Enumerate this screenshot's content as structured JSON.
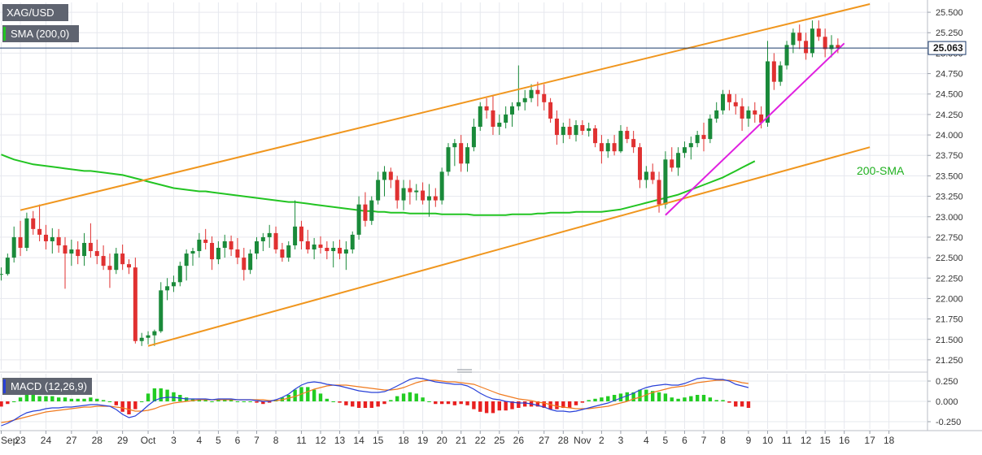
{
  "chart_data": {
    "type": "candlestick",
    "symbol": "XAG/USD",
    "indicator_label": "SMA (200,0)",
    "current_price_label": "25.063",
    "current_price": 25.063,
    "ma_annotation": "200-SMA",
    "colors": {
      "up": "#1a8a3a",
      "down": "#e03131",
      "sma": "#22c422",
      "channel": "#f0961e",
      "support": "#e020e0",
      "macd_line": "#2840d8",
      "signal_line": "#f07a1e",
      "hist_up": "#22cc22",
      "hist_down": "#e82020",
      "price_line": "#1a3a6a",
      "grid": "#e6e8ee",
      "axis_text": "#333333"
    },
    "price_axis": {
      "ylim": [
        21.13,
        25.62
      ],
      "ticks": [
        "25.500",
        "25.250",
        "25.000",
        "24.750",
        "24.500",
        "24.250",
        "24.000",
        "23.750",
        "23.500",
        "23.250",
        "23.000",
        "22.750",
        "22.500",
        "22.250",
        "22.000",
        "21.750",
        "21.500",
        "21.250"
      ]
    },
    "x_axis": {
      "labels": [
        "Sep",
        "23",
        "24",
        "27",
        "28",
        "29",
        "Oct",
        "3",
        "4",
        "5",
        "6",
        "7",
        "8",
        "11",
        "12",
        "13",
        "14",
        "15",
        "18",
        "19",
        "20",
        "21",
        "22",
        "25",
        "26",
        "27",
        "28",
        "Nov",
        "2",
        "3",
        "4",
        "5",
        "6",
        "7",
        "8",
        "9",
        "10",
        "11",
        "12",
        "15",
        "16",
        "17",
        "18"
      ]
    },
    "macd": {
      "label": "MACD (12,26,9)",
      "ylim": [
        -0.34,
        0.34
      ],
      "ticks": [
        "0.250",
        "0.000",
        "-0.250"
      ],
      "macd_line": [
        -0.3,
        -0.27,
        -0.23,
        -0.18,
        -0.14,
        -0.12,
        -0.11,
        -0.09,
        -0.08,
        -0.08,
        -0.07,
        -0.07,
        -0.06,
        -0.05,
        -0.04,
        -0.04,
        -0.05,
        -0.06,
        -0.1,
        -0.16,
        -0.2,
        -0.18,
        -0.12,
        -0.05,
        0.01,
        0.04,
        0.05,
        0.05,
        0.04,
        0.03,
        0.03,
        0.03,
        0.03,
        0.02,
        0.03,
        0.03,
        0.03,
        0.02,
        0.02,
        0.02,
        0.01,
        0.0,
        0.0,
        0.02,
        0.05,
        0.09,
        0.15,
        0.2,
        0.23,
        0.24,
        0.23,
        0.21,
        0.2,
        0.19,
        0.17,
        0.15,
        0.13,
        0.12,
        0.11,
        0.11,
        0.12,
        0.15,
        0.19,
        0.23,
        0.27,
        0.29,
        0.28,
        0.26,
        0.24,
        0.23,
        0.22,
        0.21,
        0.21,
        0.19,
        0.15,
        0.1,
        0.06,
        0.03,
        0.02,
        0.0,
        -0.01,
        -0.02,
        -0.02,
        -0.03,
        -0.05,
        -0.07,
        -0.1,
        -0.12,
        -0.12,
        -0.13,
        -0.12,
        -0.1,
        -0.08,
        -0.06,
        -0.04,
        -0.02,
        0.01,
        0.04,
        0.07,
        0.1,
        0.14,
        0.17,
        0.19,
        0.2,
        0.21,
        0.2,
        0.2,
        0.22,
        0.25,
        0.28,
        0.29,
        0.28,
        0.27,
        0.27,
        0.25,
        0.21,
        0.19,
        0.17
      ],
      "signal_line": [
        -0.26,
        -0.25,
        -0.23,
        -0.21,
        -0.19,
        -0.17,
        -0.15,
        -0.13,
        -0.12,
        -0.11,
        -0.1,
        -0.09,
        -0.08,
        -0.07,
        -0.07,
        -0.06,
        -0.06,
        -0.06,
        -0.07,
        -0.08,
        -0.1,
        -0.12,
        -0.12,
        -0.11,
        -0.09,
        -0.06,
        -0.04,
        -0.02,
        -0.01,
        0.0,
        0.01,
        0.02,
        0.02,
        0.02,
        0.02,
        0.02,
        0.02,
        0.02,
        0.02,
        0.02,
        0.02,
        0.02,
        0.01,
        0.01,
        0.02,
        0.04,
        0.06,
        0.09,
        0.12,
        0.15,
        0.17,
        0.19,
        0.2,
        0.2,
        0.2,
        0.19,
        0.18,
        0.17,
        0.16,
        0.15,
        0.14,
        0.14,
        0.15,
        0.17,
        0.2,
        0.23,
        0.25,
        0.26,
        0.26,
        0.25,
        0.24,
        0.24,
        0.23,
        0.22,
        0.21,
        0.18,
        0.15,
        0.12,
        0.09,
        0.07,
        0.05,
        0.03,
        0.02,
        0.01,
        -0.01,
        -0.02,
        -0.04,
        -0.06,
        -0.07,
        -0.08,
        -0.09,
        -0.09,
        -0.09,
        -0.08,
        -0.07,
        -0.06,
        -0.04,
        -0.02,
        0.0,
        0.03,
        0.05,
        0.08,
        0.11,
        0.13,
        0.15,
        0.17,
        0.18,
        0.19,
        0.21,
        0.23,
        0.24,
        0.25,
        0.26,
        0.26,
        0.26,
        0.25,
        0.23,
        0.22
      ]
    },
    "candles": [
      {
        "o": 22.3,
        "h": 22.38,
        "l": 22.22,
        "c": 22.3
      },
      {
        "o": 22.3,
        "h": 22.55,
        "l": 22.28,
        "c": 22.5
      },
      {
        "o": 22.5,
        "h": 22.88,
        "l": 22.44,
        "c": 22.75
      },
      {
        "o": 22.75,
        "h": 22.95,
        "l": 22.52,
        "c": 22.62
      },
      {
        "o": 22.62,
        "h": 23.05,
        "l": 22.58,
        "c": 22.98
      },
      {
        "o": 22.98,
        "h": 23.07,
        "l": 22.78,
        "c": 22.85
      },
      {
        "o": 22.85,
        "h": 23.15,
        "l": 22.7,
        "c": 22.78
      },
      {
        "o": 22.78,
        "h": 22.9,
        "l": 22.6,
        "c": 22.7
      },
      {
        "o": 22.7,
        "h": 22.86,
        "l": 22.55,
        "c": 22.75
      },
      {
        "o": 22.75,
        "h": 22.85,
        "l": 22.56,
        "c": 22.65
      },
      {
        "o": 22.65,
        "h": 22.75,
        "l": 22.12,
        "c": 22.55
      },
      {
        "o": 22.55,
        "h": 22.72,
        "l": 22.4,
        "c": 22.6
      },
      {
        "o": 22.6,
        "h": 22.7,
        "l": 22.42,
        "c": 22.52
      },
      {
        "o": 22.52,
        "h": 22.8,
        "l": 22.4,
        "c": 22.68
      },
      {
        "o": 22.68,
        "h": 22.92,
        "l": 22.5,
        "c": 22.58
      },
      {
        "o": 22.58,
        "h": 22.72,
        "l": 22.42,
        "c": 22.52
      },
      {
        "o": 22.52,
        "h": 22.65,
        "l": 22.35,
        "c": 22.4
      },
      {
        "o": 22.4,
        "h": 22.55,
        "l": 22.13,
        "c": 22.35
      },
      {
        "o": 22.35,
        "h": 22.62,
        "l": 22.3,
        "c": 22.55
      },
      {
        "o": 22.55,
        "h": 22.66,
        "l": 22.35,
        "c": 22.42
      },
      {
        "o": 22.42,
        "h": 22.48,
        "l": 22.3,
        "c": 22.38
      },
      {
        "o": 22.38,
        "h": 22.5,
        "l": 21.45,
        "c": 21.48
      },
      {
        "o": 21.48,
        "h": 21.58,
        "l": 21.42,
        "c": 21.52
      },
      {
        "o": 21.52,
        "h": 21.6,
        "l": 21.44,
        "c": 21.55
      },
      {
        "o": 21.55,
        "h": 21.62,
        "l": 21.42,
        "c": 21.6
      },
      {
        "o": 21.6,
        "h": 22.2,
        "l": 21.58,
        "c": 22.1
      },
      {
        "o": 22.1,
        "h": 22.25,
        "l": 21.98,
        "c": 22.15
      },
      {
        "o": 22.15,
        "h": 22.28,
        "l": 22.08,
        "c": 22.2
      },
      {
        "o": 22.2,
        "h": 22.45,
        "l": 22.15,
        "c": 22.4
      },
      {
        "o": 22.4,
        "h": 22.6,
        "l": 22.22,
        "c": 22.55
      },
      {
        "o": 22.55,
        "h": 22.62,
        "l": 22.4,
        "c": 22.58
      },
      {
        "o": 22.58,
        "h": 22.8,
        "l": 22.5,
        "c": 22.72
      },
      {
        "o": 22.72,
        "h": 22.85,
        "l": 22.6,
        "c": 22.68
      },
      {
        "o": 22.68,
        "h": 22.76,
        "l": 22.35,
        "c": 22.48
      },
      {
        "o": 22.48,
        "h": 22.7,
        "l": 22.42,
        "c": 22.62
      },
      {
        "o": 22.62,
        "h": 22.78,
        "l": 22.5,
        "c": 22.7
      },
      {
        "o": 22.7,
        "h": 22.77,
        "l": 22.52,
        "c": 22.6
      },
      {
        "o": 22.6,
        "h": 22.74,
        "l": 22.42,
        "c": 22.5
      },
      {
        "o": 22.5,
        "h": 22.62,
        "l": 22.22,
        "c": 22.35
      },
      {
        "o": 22.35,
        "h": 22.6,
        "l": 22.3,
        "c": 22.55
      },
      {
        "o": 22.55,
        "h": 22.75,
        "l": 22.48,
        "c": 22.7
      },
      {
        "o": 22.7,
        "h": 22.8,
        "l": 22.58,
        "c": 22.75
      },
      {
        "o": 22.75,
        "h": 22.9,
        "l": 22.62,
        "c": 22.8
      },
      {
        "o": 22.8,
        "h": 22.88,
        "l": 22.55,
        "c": 22.6
      },
      {
        "o": 22.6,
        "h": 22.68,
        "l": 22.45,
        "c": 22.5
      },
      {
        "o": 22.5,
        "h": 22.7,
        "l": 22.45,
        "c": 22.65
      },
      {
        "o": 22.65,
        "h": 23.2,
        "l": 22.6,
        "c": 22.88
      },
      {
        "o": 22.88,
        "h": 22.95,
        "l": 22.6,
        "c": 22.7
      },
      {
        "o": 22.7,
        "h": 22.84,
        "l": 22.55,
        "c": 22.6
      },
      {
        "o": 22.6,
        "h": 22.74,
        "l": 22.48,
        "c": 22.66
      },
      {
        "o": 22.66,
        "h": 22.76,
        "l": 22.55,
        "c": 22.62
      },
      {
        "o": 22.62,
        "h": 22.7,
        "l": 22.48,
        "c": 22.58
      },
      {
        "o": 22.58,
        "h": 22.7,
        "l": 22.38,
        "c": 22.62
      },
      {
        "o": 22.62,
        "h": 22.72,
        "l": 22.48,
        "c": 22.55
      },
      {
        "o": 22.55,
        "h": 22.7,
        "l": 22.35,
        "c": 22.6
      },
      {
        "o": 22.6,
        "h": 22.82,
        "l": 22.55,
        "c": 22.78
      },
      {
        "o": 22.78,
        "h": 23.25,
        "l": 22.72,
        "c": 23.15
      },
      {
        "o": 23.15,
        "h": 23.3,
        "l": 22.88,
        "c": 22.95
      },
      {
        "o": 22.95,
        "h": 23.25,
        "l": 22.9,
        "c": 23.2
      },
      {
        "o": 23.2,
        "h": 23.55,
        "l": 23.15,
        "c": 23.45
      },
      {
        "o": 23.45,
        "h": 23.62,
        "l": 23.25,
        "c": 23.55
      },
      {
        "o": 23.55,
        "h": 23.6,
        "l": 23.35,
        "c": 23.45
      },
      {
        "o": 23.45,
        "h": 23.5,
        "l": 23.1,
        "c": 23.2
      },
      {
        "o": 23.2,
        "h": 23.45,
        "l": 23.08,
        "c": 23.35
      },
      {
        "o": 23.35,
        "h": 23.45,
        "l": 23.15,
        "c": 23.3
      },
      {
        "o": 23.3,
        "h": 23.4,
        "l": 23.2,
        "c": 23.32
      },
      {
        "o": 23.32,
        "h": 23.42,
        "l": 23.15,
        "c": 23.2
      },
      {
        "o": 23.2,
        "h": 23.4,
        "l": 23.0,
        "c": 23.25
      },
      {
        "o": 23.25,
        "h": 23.35,
        "l": 23.12,
        "c": 23.2
      },
      {
        "o": 23.2,
        "h": 23.6,
        "l": 23.15,
        "c": 23.55
      },
      {
        "o": 23.55,
        "h": 23.9,
        "l": 23.5,
        "c": 23.85
      },
      {
        "o": 23.85,
        "h": 23.95,
        "l": 23.62,
        "c": 23.9
      },
      {
        "o": 23.9,
        "h": 24.0,
        "l": 23.55,
        "c": 23.65
      },
      {
        "o": 23.65,
        "h": 23.9,
        "l": 23.55,
        "c": 23.85
      },
      {
        "o": 23.85,
        "h": 24.2,
        "l": 23.8,
        "c": 24.1
      },
      {
        "o": 24.1,
        "h": 24.4,
        "l": 24.05,
        "c": 24.35
      },
      {
        "o": 24.35,
        "h": 24.45,
        "l": 24.2,
        "c": 24.3
      },
      {
        "o": 24.3,
        "h": 24.48,
        "l": 24.0,
        "c": 24.1
      },
      {
        "o": 24.1,
        "h": 24.25,
        "l": 24.0,
        "c": 24.15
      },
      {
        "o": 24.15,
        "h": 24.35,
        "l": 24.08,
        "c": 24.25
      },
      {
        "o": 24.25,
        "h": 24.4,
        "l": 24.1,
        "c": 24.35
      },
      {
        "o": 24.35,
        "h": 24.85,
        "l": 24.3,
        "c": 24.4
      },
      {
        "o": 24.4,
        "h": 24.55,
        "l": 24.3,
        "c": 24.45
      },
      {
        "o": 24.45,
        "h": 24.62,
        "l": 24.4,
        "c": 24.55
      },
      {
        "o": 24.55,
        "h": 24.65,
        "l": 24.35,
        "c": 24.5
      },
      {
        "o": 24.5,
        "h": 24.62,
        "l": 24.3,
        "c": 24.4
      },
      {
        "o": 24.4,
        "h": 24.45,
        "l": 24.15,
        "c": 24.2
      },
      {
        "o": 24.2,
        "h": 24.3,
        "l": 23.88,
        "c": 24.0
      },
      {
        "o": 24.0,
        "h": 24.15,
        "l": 23.9,
        "c": 24.1
      },
      {
        "o": 24.1,
        "h": 24.2,
        "l": 23.95,
        "c": 24.0
      },
      {
        "o": 24.0,
        "h": 24.18,
        "l": 23.92,
        "c": 24.12
      },
      {
        "o": 24.12,
        "h": 24.18,
        "l": 24.0,
        "c": 24.05
      },
      {
        "o": 24.05,
        "h": 24.15,
        "l": 23.98,
        "c": 24.08
      },
      {
        "o": 24.08,
        "h": 24.12,
        "l": 23.85,
        "c": 23.9
      },
      {
        "o": 23.9,
        "h": 24.0,
        "l": 23.65,
        "c": 23.8
      },
      {
        "o": 23.8,
        "h": 23.95,
        "l": 23.72,
        "c": 23.9
      },
      {
        "o": 23.9,
        "h": 24.0,
        "l": 23.75,
        "c": 23.8
      },
      {
        "o": 23.8,
        "h": 24.12,
        "l": 23.78,
        "c": 24.05
      },
      {
        "o": 24.05,
        "h": 24.1,
        "l": 23.9,
        "c": 23.95
      },
      {
        "o": 23.95,
        "h": 24.05,
        "l": 23.78,
        "c": 23.85
      },
      {
        "o": 23.85,
        "h": 23.9,
        "l": 23.35,
        "c": 23.45
      },
      {
        "o": 23.45,
        "h": 23.62,
        "l": 23.35,
        "c": 23.55
      },
      {
        "o": 23.55,
        "h": 23.65,
        "l": 23.4,
        "c": 23.45
      },
      {
        "o": 23.45,
        "h": 23.55,
        "l": 23.05,
        "c": 23.15
      },
      {
        "o": 23.15,
        "h": 23.8,
        "l": 23.1,
        "c": 23.7
      },
      {
        "o": 23.7,
        "h": 23.85,
        "l": 23.55,
        "c": 23.6
      },
      {
        "o": 23.6,
        "h": 23.85,
        "l": 23.5,
        "c": 23.78
      },
      {
        "o": 23.78,
        "h": 23.92,
        "l": 23.72,
        "c": 23.85
      },
      {
        "o": 23.85,
        "h": 23.98,
        "l": 23.7,
        "c": 23.9
      },
      {
        "o": 23.9,
        "h": 24.05,
        "l": 23.85,
        "c": 24.0
      },
      {
        "o": 24.0,
        "h": 24.15,
        "l": 23.8,
        "c": 23.95
      },
      {
        "o": 23.95,
        "h": 24.25,
        "l": 23.9,
        "c": 24.2
      },
      {
        "o": 24.2,
        "h": 24.4,
        "l": 24.15,
        "c": 24.3
      },
      {
        "o": 24.3,
        "h": 24.55,
        "l": 24.25,
        "c": 24.5
      },
      {
        "o": 24.5,
        "h": 24.55,
        "l": 24.3,
        "c": 24.4
      },
      {
        "o": 24.4,
        "h": 24.5,
        "l": 24.25,
        "c": 24.35
      },
      {
        "o": 24.35,
        "h": 24.45,
        "l": 24.05,
        "c": 24.2
      },
      {
        "o": 24.2,
        "h": 24.35,
        "l": 24.1,
        "c": 24.3
      },
      {
        "o": 24.3,
        "h": 24.4,
        "l": 24.15,
        "c": 24.25
      },
      {
        "o": 24.25,
        "h": 24.35,
        "l": 24.08,
        "c": 24.15
      },
      {
        "o": 24.15,
        "h": 25.15,
        "l": 24.1,
        "c": 24.9
      },
      {
        "o": 24.9,
        "h": 25.0,
        "l": 24.55,
        "c": 24.65
      },
      {
        "o": 24.65,
        "h": 24.9,
        "l": 24.6,
        "c": 24.85
      },
      {
        "o": 24.85,
        "h": 25.15,
        "l": 24.8,
        "c": 25.1
      },
      {
        "o": 25.1,
        "h": 25.3,
        "l": 25.0,
        "c": 25.25
      },
      {
        "o": 25.25,
        "h": 25.35,
        "l": 25.05,
        "c": 25.15
      },
      {
        "o": 25.15,
        "h": 25.25,
        "l": 24.92,
        "c": 25.0
      },
      {
        "o": 25.0,
        "h": 25.4,
        "l": 24.95,
        "c": 25.3
      },
      {
        "o": 25.3,
        "h": 25.4,
        "l": 25.15,
        "c": 25.2
      },
      {
        "o": 25.2,
        "h": 25.3,
        "l": 24.95,
        "c": 25.05
      },
      {
        "o": 25.05,
        "h": 25.22,
        "l": 24.95,
        "c": 25.1
      },
      {
        "o": 25.1,
        "h": 25.18,
        "l": 25.0,
        "c": 25.06
      }
    ],
    "sma200": [
      23.76,
      23.73,
      23.7,
      23.68,
      23.66,
      23.64,
      23.63,
      23.62,
      23.61,
      23.6,
      23.59,
      23.58,
      23.57,
      23.56,
      23.56,
      23.55,
      23.54,
      23.53,
      23.52,
      23.51,
      23.49,
      23.47,
      23.45,
      23.43,
      23.41,
      23.39,
      23.37,
      23.35,
      23.34,
      23.33,
      23.32,
      23.31,
      23.31,
      23.3,
      23.29,
      23.28,
      23.27,
      23.26,
      23.25,
      23.24,
      23.23,
      23.22,
      23.21,
      23.2,
      23.19,
      23.18,
      23.18,
      23.17,
      23.16,
      23.15,
      23.14,
      23.13,
      23.12,
      23.11,
      23.1,
      23.09,
      23.08,
      23.07,
      23.07,
      23.06,
      23.06,
      23.05,
      23.05,
      23.05,
      23.04,
      23.04,
      23.04,
      23.04,
      23.04,
      23.03,
      23.03,
      23.03,
      23.03,
      23.03,
      23.02,
      23.02,
      23.02,
      23.02,
      23.02,
      23.02,
      23.03,
      23.03,
      23.03,
      23.03,
      23.04,
      23.04,
      23.05,
      23.05,
      23.05,
      23.05,
      23.06,
      23.06,
      23.06,
      23.06,
      23.06,
      23.07,
      23.08,
      23.09,
      23.11,
      23.13,
      23.15,
      23.17,
      23.19,
      23.21,
      23.23,
      23.25,
      23.27,
      23.3,
      23.33,
      23.36,
      23.39,
      23.42,
      23.45,
      23.48,
      23.52,
      23.56,
      23.6,
      23.64,
      23.68
    ],
    "trendlines": {
      "channel_upper": {
        "from": {
          "x": "Sep 22",
          "y": 23.08
        },
        "to": {
          "x": "Nov 17",
          "y": 25.6
        }
      },
      "channel_lower": {
        "from": {
          "x": "Sep 29",
          "y": 21.42
        },
        "to": {
          "x": "Nov 17",
          "y": 23.85
        }
      },
      "support": {
        "from": {
          "x": "Nov 3",
          "y": 23.02
        },
        "to": {
          "x": "Nov 16",
          "y": 25.12
        }
      }
    }
  }
}
